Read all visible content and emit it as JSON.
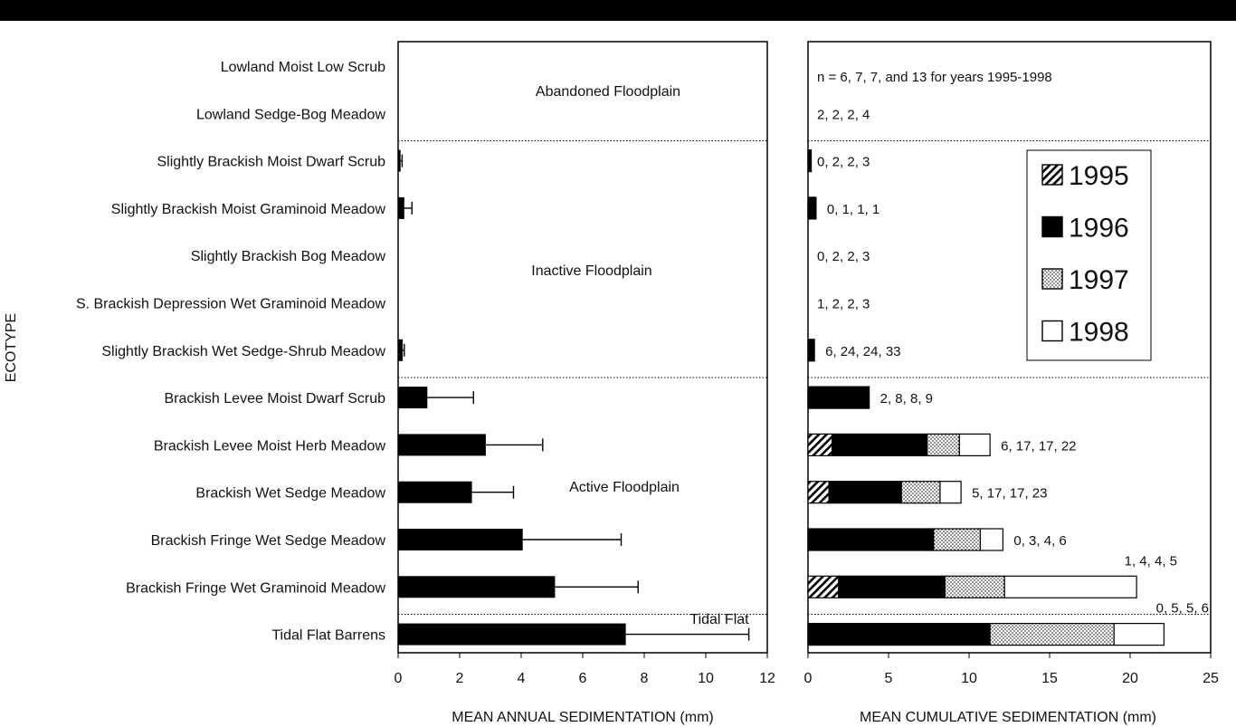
{
  "chart_data": [
    {
      "type": "bar",
      "orientation": "horizontal",
      "xlabel": "MEAN ANNUAL SEDIMENTATION (mm)",
      "ylabel": "ECOTYPE",
      "xlim": [
        0,
        12
      ],
      "xticks": [
        "0",
        "2",
        "4",
        "6",
        "8",
        "10",
        "12"
      ],
      "categories": [
        "Lowland Moist Low Scrub",
        "Lowland Sedge-Bog Meadow",
        "Slightly Brackish Moist Dwarf Scrub",
        "Slightly Brackish Moist Graminoid Meadow",
        "Slightly Brackish Bog Meadow",
        "S. Brackish Depression Wet Graminoid Meadow",
        "Slightly Brackish Wet Sedge-Shrub Meadow",
        "Brackish Levee Moist Dwarf Scrub",
        "Brackish Levee Moist Herb Meadow",
        "Brackish Wet Sedge Meadow",
        "Brackish Fringe Wet Sedge Meadow",
        "Brackish Fringe Wet Graminoid Meadow",
        "Tidal Flat Barrens"
      ],
      "values": [
        0,
        0,
        0.08,
        0.2,
        0,
        0,
        0.15,
        0.95,
        2.85,
        2.4,
        4.05,
        5.1,
        7.4
      ],
      "errors": [
        0,
        0,
        0.05,
        0.25,
        0,
        0,
        0.05,
        1.5,
        1.85,
        1.35,
        3.2,
        2.7,
        4.0
      ],
      "regions": [
        {
          "label": "Abandoned Floodplain",
          "from": 0,
          "to": 1
        },
        {
          "label": "Inactive Floodplain",
          "from": 2,
          "to": 6
        },
        {
          "label": "Active Floodplain",
          "from": 7,
          "to": 11
        },
        {
          "label": "Tidal Flat",
          "from": 12,
          "to": 12
        }
      ]
    },
    {
      "type": "bar",
      "orientation": "horizontal",
      "stacked": true,
      "xlabel": "MEAN CUMULATIVE SEDIMENTATION (mm)",
      "xlim": [
        0,
        25
      ],
      "xticks": [
        "0",
        "5",
        "10",
        "15",
        "20",
        "25"
      ],
      "legend": "top-right",
      "series": [
        {
          "name": "1995",
          "pattern": "hatch",
          "values": [
            0,
            0,
            0,
            0,
            0,
            0,
            0,
            0,
            1.5,
            1.3,
            0,
            1.9,
            0
          ]
        },
        {
          "name": "1996",
          "pattern": "solid",
          "values": [
            0,
            0,
            0.2,
            0.5,
            0,
            0,
            0.4,
            3.8,
            5.9,
            4.5,
            7.8,
            6.6,
            11.3
          ]
        },
        {
          "name": "1997",
          "pattern": "dots",
          "values": [
            0,
            0,
            0,
            0,
            0,
            0,
            0,
            0,
            2.0,
            2.4,
            2.9,
            3.7,
            7.7
          ]
        },
        {
          "name": "1998",
          "pattern": "open",
          "values": [
            0,
            0,
            0,
            0,
            0,
            0,
            0,
            0,
            1.9,
            1.3,
            1.4,
            8.2,
            3.1
          ]
        }
      ],
      "header_note": "n = 6, 7, 7, and 13 for years 1995-1998",
      "sample_sizes": [
        "",
        "2, 2, 2, 4",
        "0, 2, 2, 3",
        "0, 1, 1, 1",
        "0, 2, 2, 3",
        "1, 2, 2, 3",
        "6, 24, 24, 33",
        "2, 8, 8, 9",
        "6, 17, 17, 22",
        "5, 17, 17, 23",
        "0, 3, 4, 6",
        "1, 4, 4, 5",
        "0, 5, 5, 6"
      ]
    }
  ]
}
